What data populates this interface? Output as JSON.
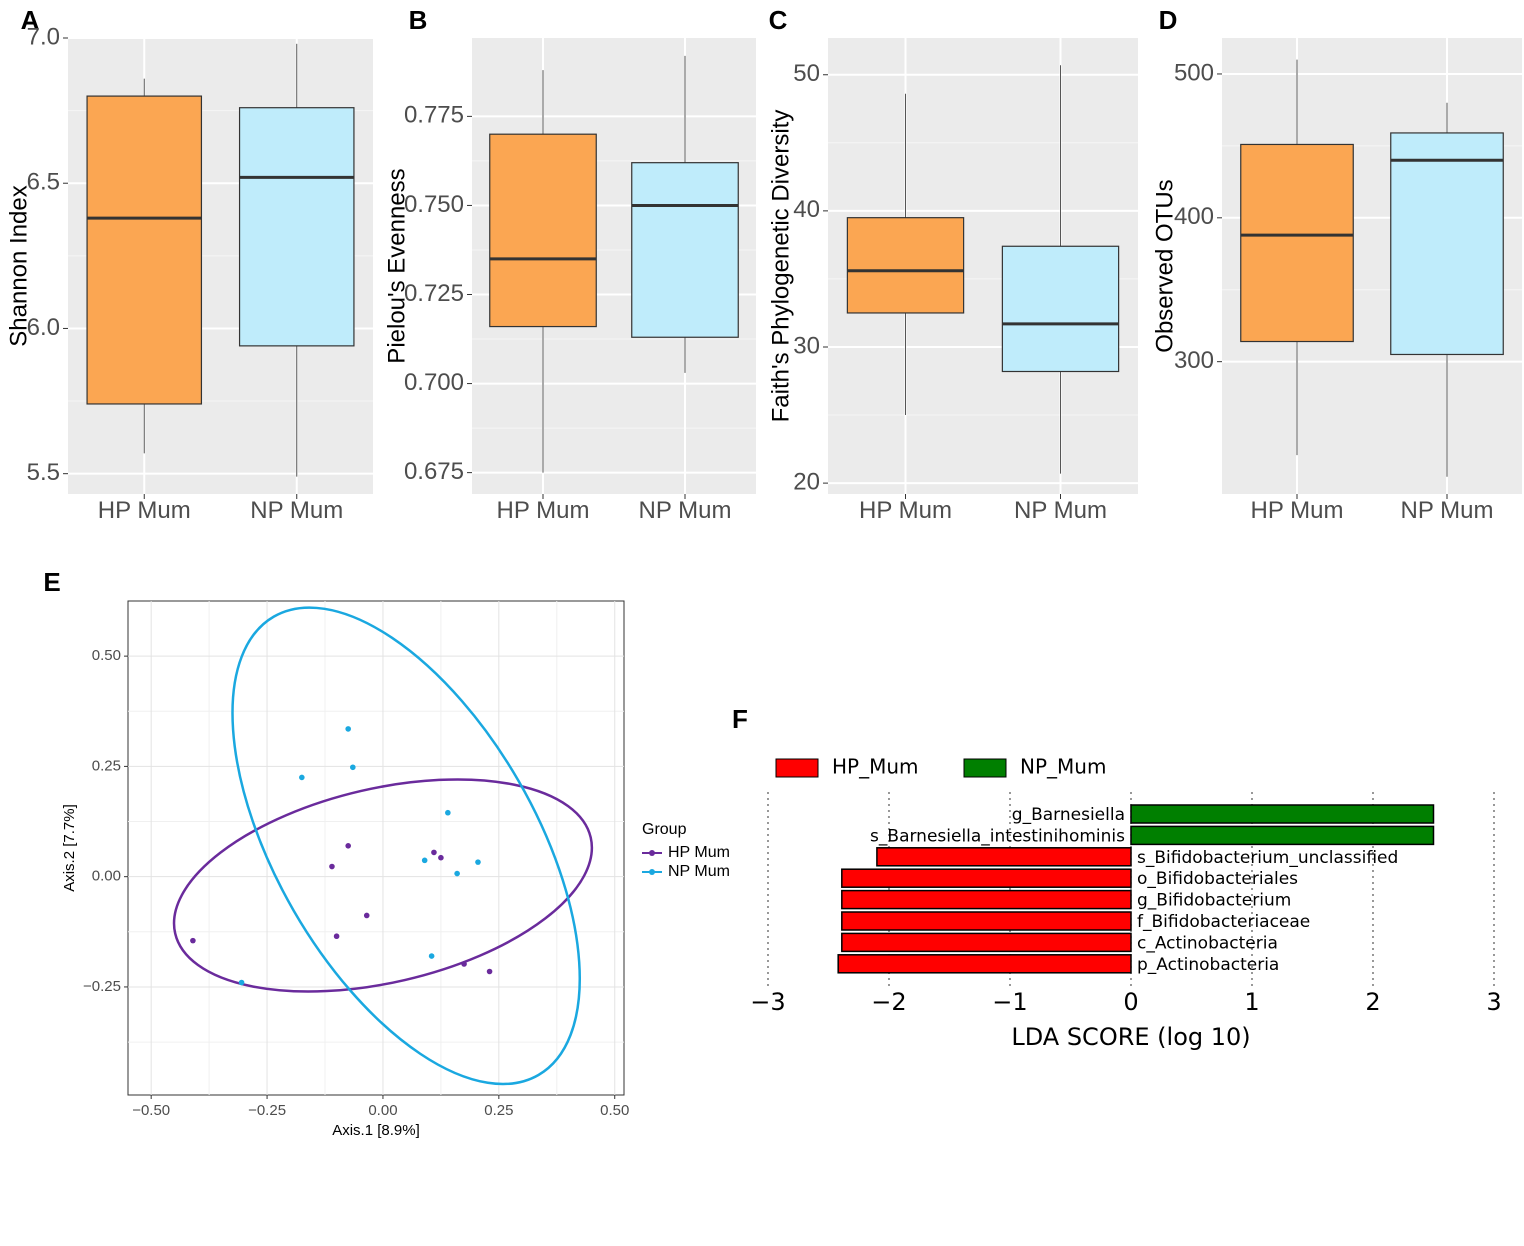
{
  "chart_data": [
    {
      "panel": "A",
      "type": "boxplot",
      "ylabel": "Shannon Index",
      "categories": [
        "HP Mum",
        "NP Mum"
      ],
      "yticks": [
        5.5,
        6.0,
        6.5,
        7.0
      ],
      "ylim": [
        5.43,
        7.0
      ],
      "colors": [
        "#fba652",
        "#bfecfb"
      ],
      "boxes": [
        {
          "lower_whisker": 5.57,
          "q1": 5.74,
          "median": 6.38,
          "q3": 6.8,
          "upper_whisker": 6.86
        },
        {
          "lower_whisker": 5.49,
          "q1": 5.94,
          "median": 6.52,
          "q3": 6.76,
          "upper_whisker": 6.98
        }
      ]
    },
    {
      "panel": "B",
      "type": "boxplot",
      "ylabel": "Pielou's Evenness",
      "categories": [
        "HP Mum",
        "NP Mum"
      ],
      "yticks": [
        0.675,
        0.7,
        0.725,
        0.75,
        0.775
      ],
      "ytick_labels": [
        "0.675",
        "0.700",
        "0.725",
        "0.750",
        "0.775"
      ],
      "ylim": [
        0.669,
        0.797
      ],
      "colors": [
        "#fba652",
        "#bfecfb"
      ],
      "boxes": [
        {
          "lower_whisker": 0.675,
          "q1": 0.716,
          "median": 0.735,
          "q3": 0.77,
          "upper_whisker": 0.788
        },
        {
          "lower_whisker": 0.703,
          "q1": 0.713,
          "median": 0.75,
          "q3": 0.762,
          "upper_whisker": 0.792
        }
      ]
    },
    {
      "panel": "C",
      "type": "boxplot",
      "ylabel": "Faith's Phylogenetic Diversity",
      "categories": [
        "HP Mum",
        "NP Mum"
      ],
      "yticks": [
        20,
        30,
        40,
        50
      ],
      "ylim": [
        19.2,
        52.7
      ],
      "colors": [
        "#fba652",
        "#bfecfb"
      ],
      "boxes": [
        {
          "lower_whisker": 25.0,
          "q1": 32.5,
          "median": 35.6,
          "q3": 39.5,
          "upper_whisker": 48.6
        },
        {
          "lower_whisker": 20.7,
          "q1": 28.2,
          "median": 31.7,
          "q3": 37.4,
          "upper_whisker": 50.7
        }
      ]
    },
    {
      "panel": "D",
      "type": "boxplot",
      "ylabel": "Observed OTUs",
      "categories": [
        "HP Mum",
        "NP Mum"
      ],
      "yticks": [
        300,
        400,
        500
      ],
      "ylim": [
        208,
        525
      ],
      "colors": [
        "#fba652",
        "#bfecfb"
      ],
      "boxes": [
        {
          "lower_whisker": 235,
          "q1": 314,
          "median": 388,
          "q3": 451,
          "upper_whisker": 510
        },
        {
          "lower_whisker": 220,
          "q1": 305,
          "median": 440,
          "q3": 459,
          "upper_whisker": 480
        }
      ]
    },
    {
      "panel": "E",
      "type": "scatter",
      "xlabel": "Axis.1  [8.9%]",
      "ylabel": "Axis.2  [7.7%]",
      "xlim": [
        -0.55,
        0.52
      ],
      "ylim": [
        -0.495,
        0.625
      ],
      "xticks": [
        -0.5,
        -0.25,
        0.0,
        0.25,
        0.5
      ],
      "xtick_labels": [
        "−0.50",
        "−0.25",
        "0.00",
        "0.25",
        "0.50"
      ],
      "yticks": [
        -0.25,
        0.0,
        0.25,
        0.5
      ],
      "ytick_labels": [
        "−0.25",
        "0.00",
        "0.25",
        "0.50"
      ],
      "legend_title": "Group",
      "series": [
        {
          "name": "HP Mum",
          "color": "#6a2b9c",
          "points": [
            [
              -0.41,
              -0.145
            ],
            [
              -0.11,
              0.023
            ],
            [
              -0.075,
              0.07
            ],
            [
              -0.1,
              -0.135
            ],
            [
              -0.035,
              -0.088
            ],
            [
              0.11,
              0.055
            ],
            [
              0.125,
              0.043
            ],
            [
              0.175,
              -0.198
            ],
            [
              0.23,
              -0.215
            ]
          ],
          "ellipse": {
            "cx": 0.0,
            "cy": -0.02,
            "rx": 0.46,
            "ry": 0.22,
            "angle_deg": 13
          }
        },
        {
          "name": "NP Mum",
          "color": "#1aa8e0",
          "points": [
            [
              -0.075,
              0.335
            ],
            [
              -0.065,
              0.248
            ],
            [
              -0.175,
              0.225
            ],
            [
              0.14,
              0.145
            ],
            [
              0.09,
              0.037
            ],
            [
              0.16,
              0.007
            ],
            [
              0.205,
              0.033
            ],
            [
              0.105,
              -0.18
            ],
            [
              -0.305,
              -0.24
            ]
          ],
          "ellipse": {
            "cx": 0.05,
            "cy": 0.07,
            "rx": 0.28,
            "ry": 0.6,
            "angle_deg": 30
          }
        }
      ]
    },
    {
      "panel": "F",
      "type": "bar",
      "orientation": "horizontal",
      "xlabel": "LDA SCORE (log 10)",
      "xlim": [
        -3,
        3
      ],
      "xticks": [
        -3,
        -2,
        -1,
        0,
        1,
        2,
        3
      ],
      "xtick_labels": [
        "−3",
        "−2",
        "−1",
        "0",
        "1",
        "2",
        "3"
      ],
      "legend": [
        {
          "name": "HP_Mum",
          "color": "#ff0000"
        },
        {
          "name": "NP_Mum",
          "color": "#007f00"
        }
      ],
      "bars": [
        {
          "label": "g_Barnesiella",
          "value": 2.5,
          "group": "NP_Mum"
        },
        {
          "label": "s_Barnesiella_intestinihominis",
          "value": 2.5,
          "group": "NP_Mum"
        },
        {
          "label": "s_Bifidobacterium_unclassified",
          "value": -2.1,
          "group": "HP_Mum"
        },
        {
          "label": "o_Bifidobacteriales",
          "value": -2.39,
          "group": "HP_Mum"
        },
        {
          "label": "g_Bifidobacterium",
          "value": -2.39,
          "group": "HP_Mum"
        },
        {
          "label": "f_Bifidobacteriaceae",
          "value": -2.39,
          "group": "HP_Mum"
        },
        {
          "label": "c_Actinobacteria",
          "value": -2.39,
          "group": "HP_Mum"
        },
        {
          "label": "p_Actinobacteria",
          "value": -2.42,
          "group": "HP_Mum"
        }
      ]
    }
  ]
}
